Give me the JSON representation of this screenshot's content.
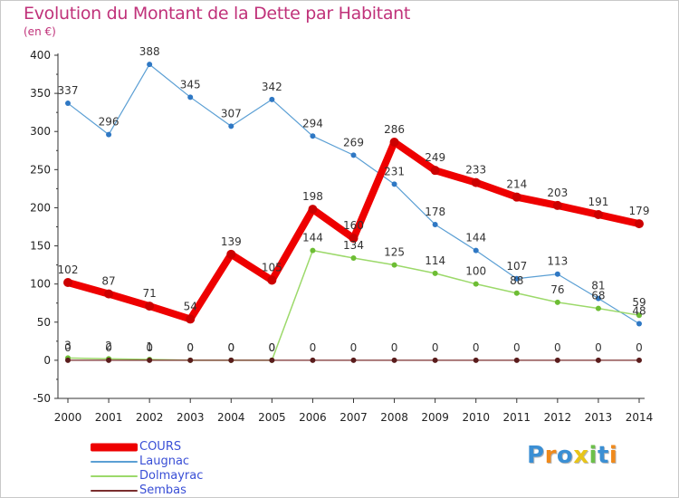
{
  "title": "Evolution du Montant de la Dette par Habitant",
  "subtitle": "(en €)",
  "logo": {
    "letters": [
      "P",
      "r",
      "o",
      "x",
      "i",
      "t",
      "i"
    ],
    "colors": [
      "#3b8fd4",
      "#f08a1c",
      "#3b8fd4",
      "#e8c51a",
      "#6cc04a",
      "#3b8fd4",
      "#f08a1c"
    ]
  },
  "chart_data": {
    "type": "line",
    "x": [
      "2000",
      "2001",
      "2002",
      "2003",
      "2004",
      "2005",
      "2006",
      "2007",
      "2008",
      "2009",
      "2010",
      "2011",
      "2012",
      "2013",
      "2014"
    ],
    "ylim": [
      -50,
      400
    ],
    "yticks": [
      -50,
      0,
      50,
      100,
      150,
      200,
      250,
      300,
      350,
      400
    ],
    "ytick_labels": [
      "-50",
      "0",
      "50",
      "100",
      "150",
      "200",
      "250",
      "300",
      "350",
      "400"
    ],
    "grid": false,
    "legend_position": "bottom-left",
    "series": [
      {
        "name": "COURS",
        "color": "#ee0000",
        "marker": "#cc0000",
        "values": [
          102,
          87,
          71,
          54,
          139,
          105,
          198,
          160,
          286,
          249,
          233,
          214,
          203,
          191,
          179
        ],
        "labels": [
          "102",
          "87",
          "71",
          "54",
          "139",
          "105",
          "198",
          "160",
          "286",
          "249",
          "233",
          "214",
          "203",
          "191",
          "179"
        ]
      },
      {
        "name": "Laugnac",
        "color": "#5b9fd4",
        "marker": "#2f78c4",
        "values": [
          337,
          296,
          388,
          345,
          307,
          342,
          294,
          269,
          231,
          178,
          144,
          107,
          113,
          81,
          48
        ],
        "labels": [
          "337",
          "296",
          "388",
          "345",
          "307",
          "342",
          "294",
          "269",
          "231",
          "178",
          "144",
          "107",
          "113",
          "81",
          "48"
        ]
      },
      {
        "name": "Dolmayrac",
        "color": "#9cd96a",
        "marker": "#6dbd34",
        "values": [
          3,
          2,
          1,
          0,
          0,
          0,
          144,
          134,
          125,
          114,
          100,
          88,
          76,
          68,
          59
        ],
        "labels": [
          "3",
          "2",
          "1",
          "0",
          "0",
          "0",
          "144",
          "134",
          "125",
          "114",
          "100",
          "88",
          "76",
          "68",
          "59"
        ]
      },
      {
        "name": "Sembas",
        "color": "#7a2e2e",
        "marker": "#5a1c1c",
        "values": [
          0,
          0,
          0,
          0,
          0,
          0,
          0,
          0,
          0,
          0,
          0,
          0,
          0,
          0,
          0
        ],
        "labels": [
          "0",
          "0",
          "0",
          "0",
          "0",
          "0",
          "0",
          "0",
          "0",
          "0",
          "0",
          "0",
          "0",
          "0",
          "0"
        ]
      }
    ]
  }
}
